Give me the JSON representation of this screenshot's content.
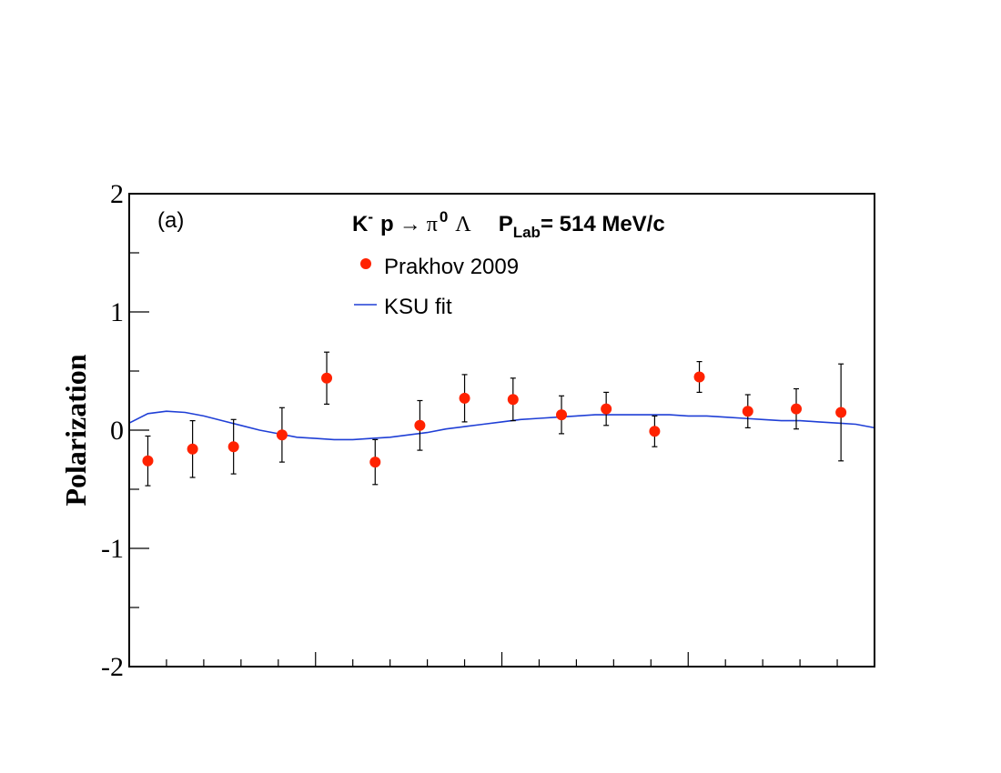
{
  "chart_data": {
    "type": "scatter",
    "panel_label": "(a)",
    "title": {
      "reaction": {
        "beam": "K",
        "beam_charge": "-",
        "target": "p",
        "arrow": "→",
        "product1": "π",
        "product1_charge": "0",
        "product2": "Λ"
      },
      "momentum": {
        "symbol": "P",
        "subscript": "Lab",
        "value_text": "= 514 MeV/c"
      }
    },
    "ylabel": "Polarization",
    "xlabel": "",
    "ylim": [
      -2,
      2
    ],
    "xlim": [
      -1,
      1
    ],
    "y_ticks": [
      2,
      1,
      0,
      -1,
      -2
    ],
    "y_tick_labels": [
      "2",
      "1",
      "0",
      "-1",
      "-2"
    ],
    "x_major_ticks": [
      -0.5,
      0,
      0.5
    ],
    "legend_location": "upper-center",
    "series": [
      {
        "name": "Prakhov 2009",
        "kind": "points",
        "color": "#ff2200",
        "points": [
          {
            "x": -0.95,
            "y": -0.26,
            "err": 0.21
          },
          {
            "x": -0.83,
            "y": -0.16,
            "err": 0.24
          },
          {
            "x": -0.72,
            "y": -0.14,
            "err": 0.23
          },
          {
            "x": -0.59,
            "y": -0.04,
            "err": 0.23
          },
          {
            "x": -0.47,
            "y": 0.44,
            "err": 0.22
          },
          {
            "x": -0.34,
            "y": -0.27,
            "err": 0.19
          },
          {
            "x": -0.22,
            "y": 0.04,
            "err": 0.21
          },
          {
            "x": -0.1,
            "y": 0.27,
            "err": 0.2
          },
          {
            "x": 0.03,
            "y": 0.26,
            "err": 0.18
          },
          {
            "x": 0.16,
            "y": 0.13,
            "err": 0.16
          },
          {
            "x": 0.28,
            "y": 0.18,
            "err": 0.14
          },
          {
            "x": 0.41,
            "y": -0.01,
            "err": 0.13
          },
          {
            "x": 0.53,
            "y": 0.45,
            "err": 0.13
          },
          {
            "x": 0.66,
            "y": 0.16,
            "err": 0.14
          },
          {
            "x": 0.79,
            "y": 0.18,
            "err": 0.17
          },
          {
            "x": 0.91,
            "y": 0.15,
            "err": 0.41
          }
        ]
      },
      {
        "name": "KSU fit",
        "kind": "line",
        "color": "#1f3fd6",
        "x": [
          -1.0,
          -0.95,
          -0.9,
          -0.85,
          -0.8,
          -0.75,
          -0.7,
          -0.65,
          -0.6,
          -0.55,
          -0.5,
          -0.45,
          -0.4,
          -0.35,
          -0.3,
          -0.25,
          -0.2,
          -0.15,
          -0.1,
          -0.05,
          0.0,
          0.05,
          0.1,
          0.15,
          0.2,
          0.25,
          0.3,
          0.35,
          0.4,
          0.45,
          0.5,
          0.55,
          0.6,
          0.65,
          0.7,
          0.75,
          0.8,
          0.85,
          0.9,
          0.95,
          1.0
        ],
        "y": [
          0.06,
          0.14,
          0.16,
          0.15,
          0.12,
          0.08,
          0.04,
          0.0,
          -0.03,
          -0.06,
          -0.07,
          -0.08,
          -0.08,
          -0.07,
          -0.06,
          -0.04,
          -0.02,
          0.01,
          0.03,
          0.05,
          0.07,
          0.09,
          0.1,
          0.11,
          0.12,
          0.13,
          0.13,
          0.13,
          0.13,
          0.13,
          0.12,
          0.12,
          0.11,
          0.1,
          0.09,
          0.08,
          0.08,
          0.07,
          0.06,
          0.05,
          0.02
        ]
      }
    ]
  }
}
